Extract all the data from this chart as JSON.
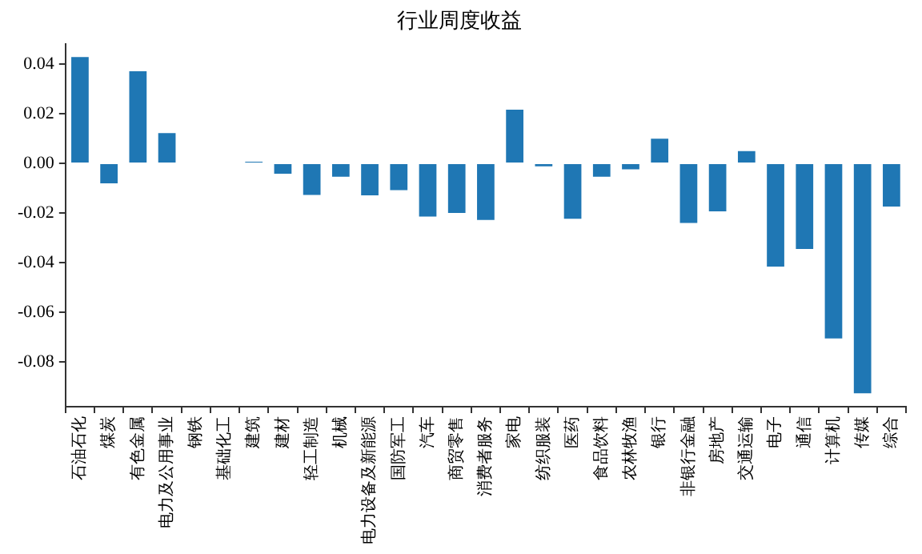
{
  "chart_data": {
    "type": "bar",
    "title": "行业周度收益",
    "categories": [
      "石油石化",
      "煤炭",
      "有色金属",
      "电力及公用事业",
      "钢铁",
      "基础化工",
      "建筑",
      "建材",
      "轻工制造",
      "机械",
      "电力设备及新能源",
      "国防军工",
      "汽车",
      "商贸零售",
      "消费者服务",
      "家电",
      "纺织服装",
      "医药",
      "食品饮料",
      "农林牧渔",
      "银行",
      "非银行金融",
      "房地产",
      "交通运输",
      "电子",
      "通信",
      "计算机",
      "传媒",
      "综合"
    ],
    "values": [
      0.0428,
      -0.008,
      0.0371,
      0.0122,
      null,
      null,
      0.0007,
      -0.0042,
      -0.0127,
      -0.0054,
      -0.0129,
      -0.0108,
      -0.0214,
      -0.02,
      -0.0228,
      0.0216,
      -0.0012,
      -0.0223,
      -0.0054,
      -0.0024,
      0.0099,
      -0.024,
      -0.0193,
      0.0049,
      -0.0416,
      -0.0345,
      -0.0705,
      -0.0926,
      -0.0174
    ],
    "color": "#1f77b4",
    "ylim": [
      -0.098,
      0.048
    ],
    "yticks": [
      {
        "value": -0.08,
        "label": "-0.08"
      },
      {
        "value": -0.06,
        "label": "-0.06"
      },
      {
        "value": -0.04,
        "label": "-0.04"
      },
      {
        "value": -0.02,
        "label": "-0.02"
      },
      {
        "value": 0,
        "label": "0.00"
      },
      {
        "value": 0.02,
        "label": "0.02"
      },
      {
        "value": 0.04,
        "label": "0.04"
      }
    ],
    "grid": false,
    "legend": false
  }
}
